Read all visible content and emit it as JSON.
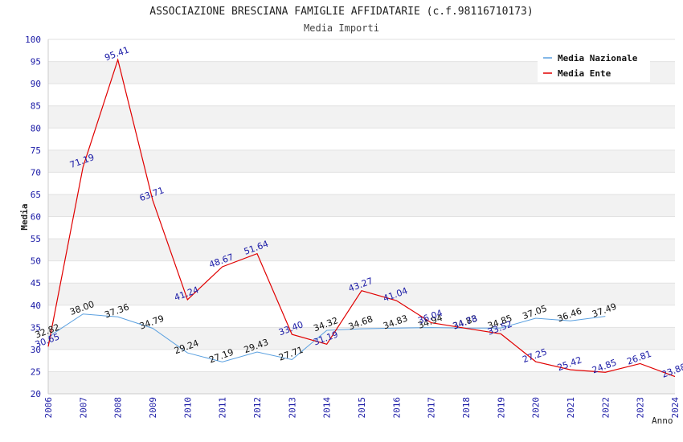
{
  "chart_data": {
    "type": "line",
    "title": "ASSOCIAZIONE BRESCIANA FAMIGLIE AFFIDATARIE (c.f.98116710173)",
    "subtitle": "Media Importi",
    "xlabel": "Anno",
    "ylabel": "Media",
    "ylim": [
      20,
      100
    ],
    "yticks": [
      20,
      25,
      30,
      35,
      40,
      45,
      50,
      55,
      60,
      65,
      70,
      75,
      80,
      85,
      90,
      95,
      100
    ],
    "x": [
      "2006",
      "2007",
      "2008",
      "2009",
      "2010",
      "2011",
      "2012",
      "2013",
      "2014",
      "2015",
      "2016",
      "2017",
      "2018",
      "2019",
      "2020",
      "2021",
      "2022",
      "2023",
      "2024"
    ],
    "legend_position": "top-right",
    "grid": "horizontal bands",
    "series": [
      {
        "name": "Media Nazionale",
        "color": "#5aa0e0",
        "values": [
          32.82,
          38.0,
          37.36,
          34.79,
          29.24,
          27.19,
          29.43,
          27.71,
          34.32,
          34.68,
          34.83,
          34.94,
          34.83,
          34.85,
          37.05,
          36.46,
          37.49,
          null,
          null
        ],
        "labels": [
          "32.82",
          "38.00",
          "37.36",
          "34.79",
          "29.24",
          "27.19",
          "29.43",
          "27.71",
          "34.32",
          "34.68",
          "34.83",
          "34.94",
          "34.83",
          "34.85",
          "37.05",
          "36.46",
          "37.49",
          "",
          ""
        ]
      },
      {
        "name": "Media Ente",
        "color": "#e00000",
        "values": [
          30.65,
          71.19,
          95.41,
          63.71,
          41.24,
          48.67,
          51.64,
          33.4,
          31.19,
          43.27,
          41.04,
          36.04,
          34.78,
          33.52,
          27.25,
          25.42,
          24.85,
          26.81,
          23.88
        ],
        "labels": [
          "30.65",
          "71.19",
          "95.41",
          "63.71",
          "41.24",
          "48.67",
          "51.64",
          "33.40",
          "31.19",
          "43.27",
          "41.04",
          "36.04",
          "34.78",
          "33.52",
          "27.25",
          "25.42",
          "24.85",
          "26.81",
          "23.88"
        ]
      }
    ]
  }
}
